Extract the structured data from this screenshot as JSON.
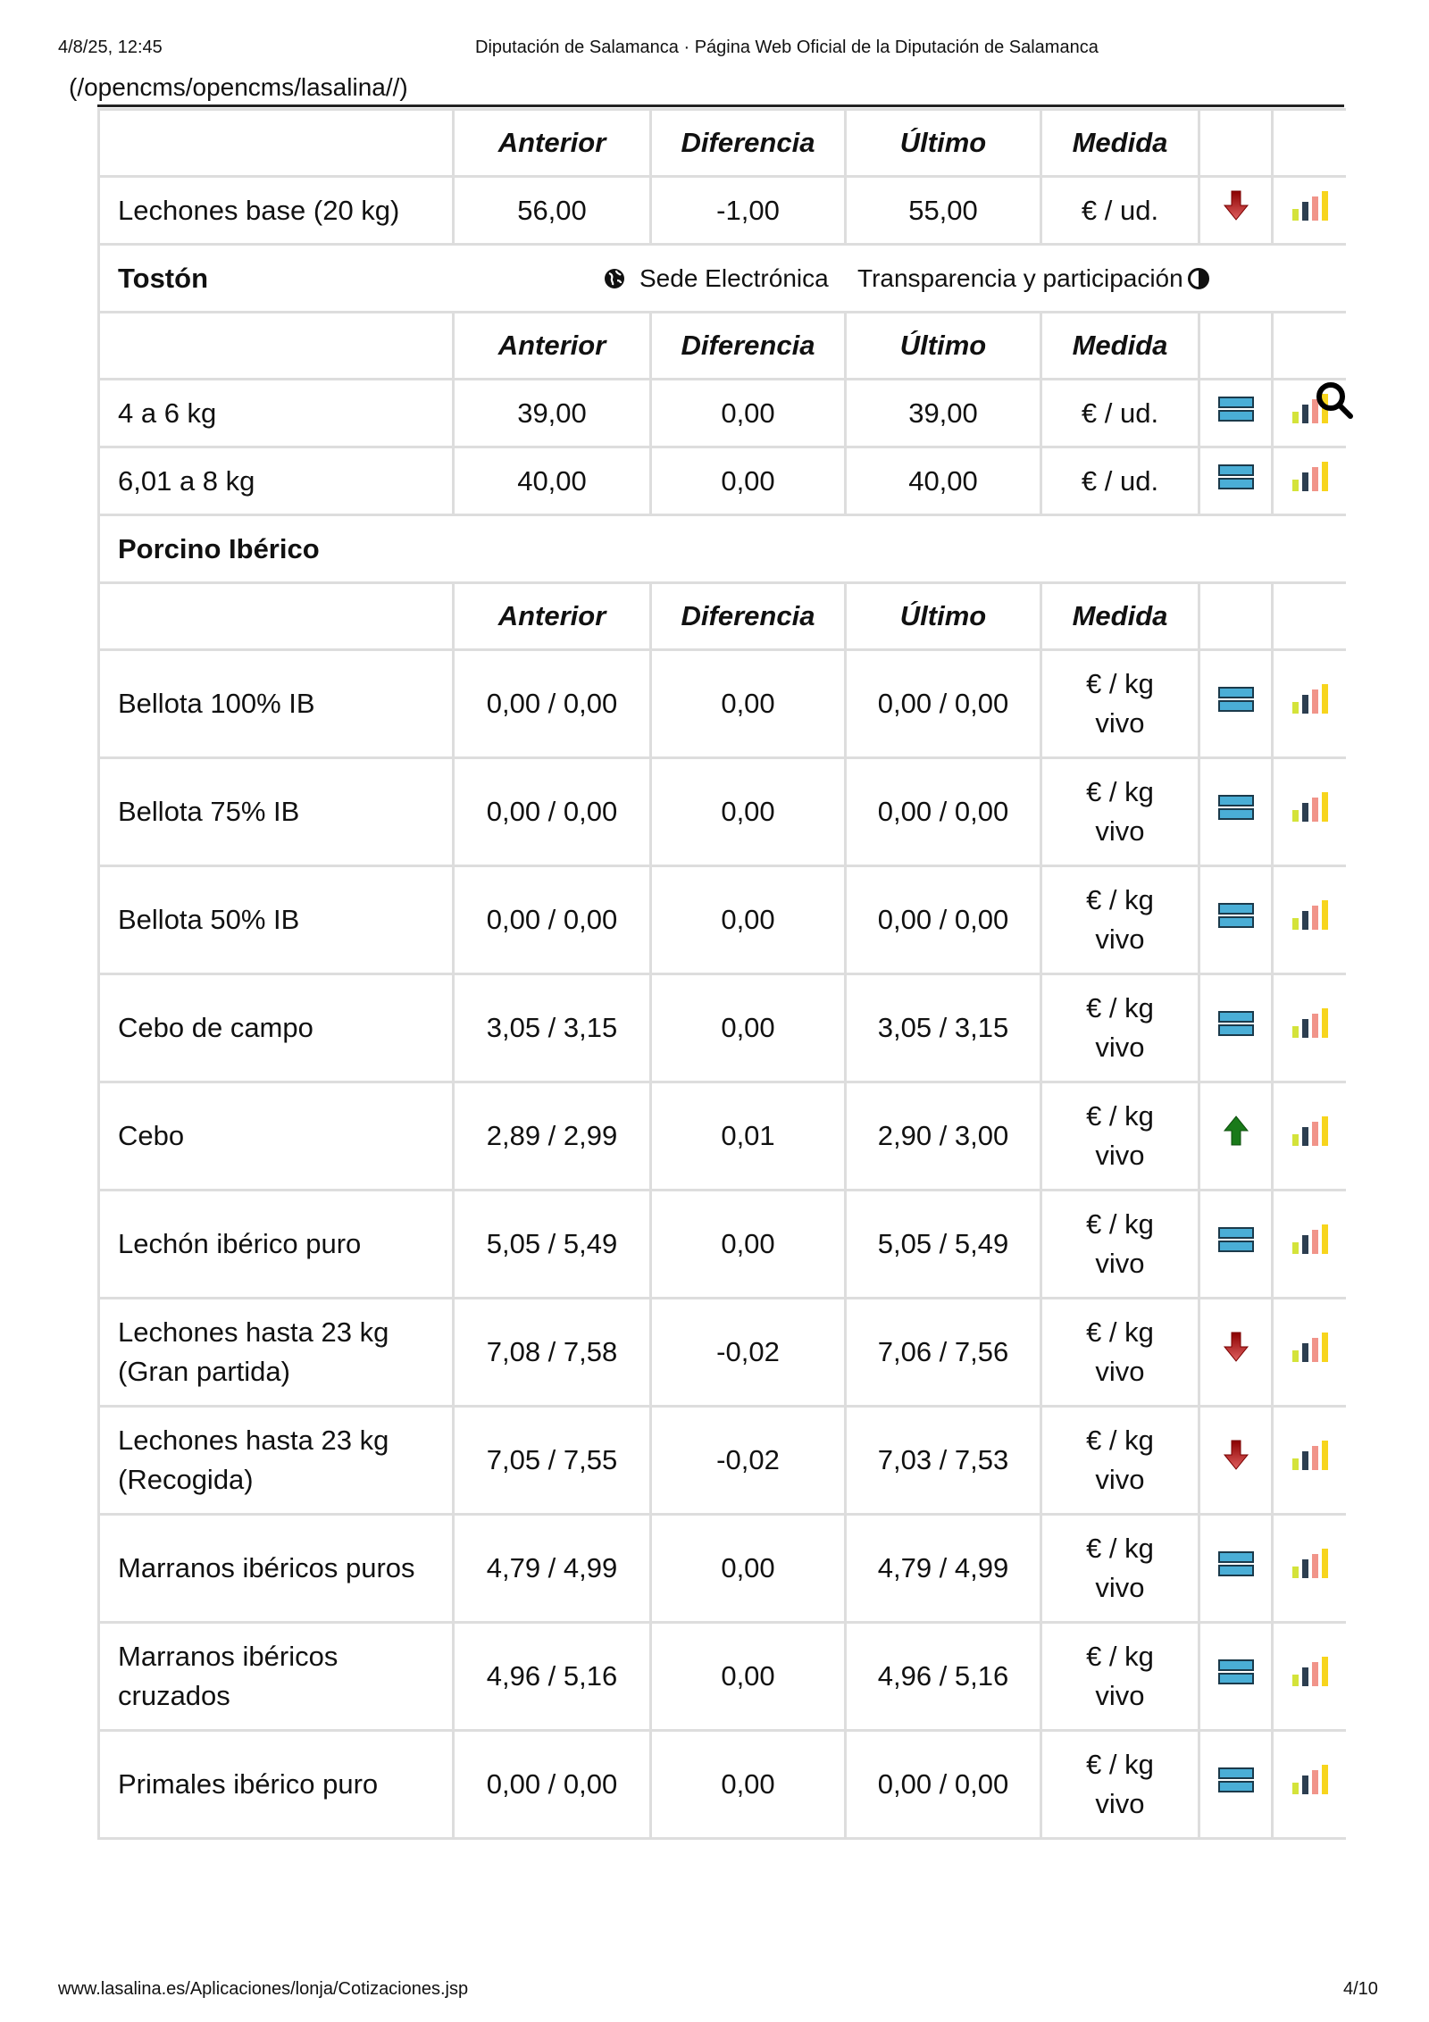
{
  "print_header": {
    "date": "4/8/25, 12:45",
    "title": "Diputación de Salamanca · Página Web Oficial de la Diputación de Salamanca"
  },
  "home_link": "(/opencms/opencms/lasalina//)",
  "overlays": {
    "sede": "Sede Electrónica",
    "transparencia": "Transparencia y participación"
  },
  "columns": [
    "",
    "Anterior",
    "Diferencia",
    "Último",
    "Medida"
  ],
  "colors": {
    "down": "#b00000",
    "up": "#1a7a1a",
    "flat": "#4aaed6",
    "chart": [
      "#d4e33a",
      "#2c3e50",
      "#f1948a",
      "#f7d51d"
    ]
  },
  "sections": [
    {
      "title": "",
      "rows": [
        {
          "name": "Lechones base (20 kg)",
          "anterior": "56,00",
          "diferencia": "-1,00",
          "ultimo": "55,00",
          "medida": "€ / ud.",
          "trend": "down"
        }
      ]
    },
    {
      "title": "Tostón",
      "rows": [
        {
          "name": "4 a 6 kg",
          "anterior": "39,00",
          "diferencia": "0,00",
          "ultimo": "39,00",
          "medida": "€ / ud.",
          "trend": "flat"
        },
        {
          "name": "6,01 a 8 kg",
          "anterior": "40,00",
          "diferencia": "0,00",
          "ultimo": "40,00",
          "medida": "€ / ud.",
          "trend": "flat"
        }
      ]
    },
    {
      "title": "Porcino Ibérico",
      "tall": true,
      "rows": [
        {
          "name": "Bellota 100% IB",
          "anterior": "0,00 / 0,00",
          "diferencia": "0,00",
          "ultimo": "0,00 / 0,00",
          "medida": "€ / kg vivo",
          "trend": "flat"
        },
        {
          "name": "Bellota 75% IB",
          "anterior": "0,00 / 0,00",
          "diferencia": "0,00",
          "ultimo": "0,00 / 0,00",
          "medida": "€ / kg vivo",
          "trend": "flat"
        },
        {
          "name": "Bellota 50% IB",
          "anterior": "0,00 / 0,00",
          "diferencia": "0,00",
          "ultimo": "0,00 / 0,00",
          "medida": "€ / kg vivo",
          "trend": "flat"
        },
        {
          "name": "Cebo de campo",
          "anterior": "3,05 / 3,15",
          "diferencia": "0,00",
          "ultimo": "3,05 / 3,15",
          "medida": "€ / kg vivo",
          "trend": "flat"
        },
        {
          "name": "Cebo",
          "anterior": "2,89 / 2,99",
          "diferencia": "0,01",
          "ultimo": "2,90 / 3,00",
          "medida": "€ / kg vivo",
          "trend": "up"
        },
        {
          "name": "Lechón ibérico puro",
          "anterior": "5,05 / 5,49",
          "diferencia": "0,00",
          "ultimo": "5,05 / 5,49",
          "medida": "€ / kg vivo",
          "trend": "flat"
        },
        {
          "name": "Lechones hasta 23 kg (Gran partida)",
          "anterior": "7,08 / 7,58",
          "diferencia": "-0,02",
          "ultimo": "7,06 / 7,56",
          "medida": "€ / kg vivo",
          "trend": "down"
        },
        {
          "name": "Lechones hasta 23 kg (Recogida)",
          "anterior": "7,05 / 7,55",
          "diferencia": "-0,02",
          "ultimo": "7,03 / 7,53",
          "medida": "€ / kg vivo",
          "trend": "down"
        },
        {
          "name": "Marranos ibéricos puros",
          "anterior": "4,79 / 4,99",
          "diferencia": "0,00",
          "ultimo": "4,79 / 4,99",
          "medida": "€ / kg vivo",
          "trend": "flat"
        },
        {
          "name": "Marranos ibéricos cruzados",
          "anterior": "4,96 / 5,16",
          "diferencia": "0,00",
          "ultimo": "4,96 / 5,16",
          "medida": "€ / kg vivo",
          "trend": "flat"
        },
        {
          "name": "Primales ibérico puro",
          "anterior": "0,00 / 0,00",
          "diferencia": "0,00",
          "ultimo": "0,00 / 0,00",
          "medida": "€ / kg vivo",
          "trend": "flat"
        }
      ]
    }
  ],
  "print_footer": {
    "url": "www.lasalina.es/Aplicaciones/lonja/Cotizaciones.jsp",
    "page": "4/10"
  }
}
